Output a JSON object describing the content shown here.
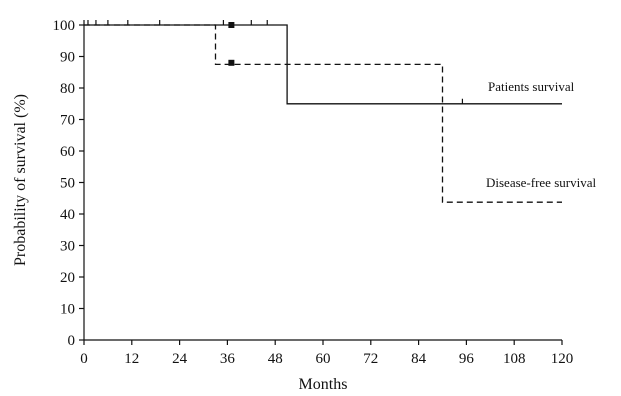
{
  "chart_data": {
    "type": "line",
    "xlabel": "Months",
    "ylabel": "Probability of survival (%)",
    "xlim": [
      0,
      120
    ],
    "ylim": [
      0,
      100
    ],
    "xticks": [
      0,
      12,
      24,
      36,
      48,
      60,
      72,
      84,
      96,
      108,
      120
    ],
    "yticks": [
      0,
      10,
      20,
      30,
      40,
      50,
      60,
      70,
      80,
      90,
      100
    ],
    "grid": false,
    "series": [
      {
        "name": "Patients survival",
        "style": "solid",
        "color": "#111111",
        "steps": [
          [
            0,
            100
          ],
          [
            51,
            100
          ],
          [
            51,
            75
          ],
          [
            120,
            75
          ]
        ],
        "censored": [
          1,
          3,
          6,
          11,
          19,
          35,
          42,
          46,
          95
        ]
      },
      {
        "name": "Disease-free survival",
        "style": "dashed",
        "color": "#111111",
        "steps": [
          [
            0,
            100
          ],
          [
            33,
            100
          ],
          [
            33,
            87.5
          ],
          [
            90,
            87.5
          ],
          [
            90,
            43.75
          ],
          [
            120,
            43.75
          ]
        ],
        "censored": []
      }
    ],
    "markers": [
      [
        37,
        100
      ],
      [
        37,
        88
      ]
    ]
  }
}
